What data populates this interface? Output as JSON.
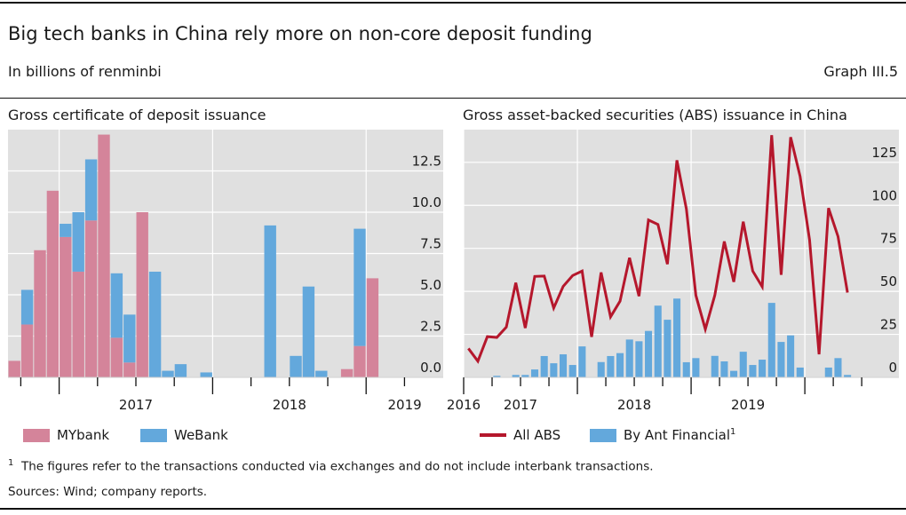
{
  "header": {
    "title": "Big tech banks in China rely more on non-core deposit funding",
    "subtitle": "In billions of renminbi",
    "graph_number": "Graph III.5"
  },
  "colors": {
    "mybank": "#d4849a",
    "webank": "#63a8dc",
    "all_abs": "#b5172c",
    "ant": "#63a8dc",
    "plot_bg": "#e0e0e0",
    "grid": "#ffffff"
  },
  "chart_data": [
    {
      "type": "bar",
      "stacked": true,
      "title": "Gross certificate of deposit issuance",
      "categories": [
        "2016-09",
        "2016-10",
        "2016-11",
        "2016-12",
        "2017-01",
        "2017-02",
        "2017-03",
        "2017-04",
        "2017-05",
        "2017-06",
        "2017-07",
        "2017-08",
        "2017-09",
        "2017-10",
        "2017-11",
        "2017-12",
        "2018-01",
        "2018-02",
        "2018-03",
        "2018-04",
        "2018-05",
        "2018-06",
        "2018-07",
        "2018-08",
        "2018-09",
        "2018-10",
        "2018-11",
        "2018-12",
        "2019-01"
      ],
      "series": [
        {
          "name": "MYbank",
          "values": [
            1.0,
            3.2,
            7.7,
            11.3,
            8.5,
            6.4,
            9.5,
            14.7,
            2.4,
            0.9,
            10.0,
            0,
            0,
            0,
            0,
            0,
            0,
            0,
            0,
            0,
            0,
            0,
            0,
            0,
            0,
            0,
            0.5,
            1.9,
            6.0
          ]
        },
        {
          "name": "WeBank",
          "values": [
            0,
            2.1,
            0,
            0,
            0.8,
            3.6,
            3.7,
            0,
            3.9,
            2.9,
            0,
            6.4,
            0.4,
            0.8,
            0,
            0.3,
            0,
            0,
            0,
            0,
            9.2,
            0,
            1.3,
            5.5,
            0.4,
            0,
            0,
            7.1,
            0
          ]
        }
      ],
      "x_tick_labels": [
        "2017",
        "2018",
        "2019"
      ],
      "y_ticks": [
        "0.0",
        "2.5",
        "5.0",
        "7.5",
        "10.0",
        "12.5"
      ],
      "ylim": [
        0,
        15
      ],
      "y_axis_side": "right",
      "grid": true,
      "legend": "bottom"
    },
    {
      "type": "bar+line",
      "title": "Gross asset-backed securities (ABS) issuance in China",
      "categories": [
        "2016-01",
        "2016-02",
        "2016-03",
        "2016-04",
        "2016-05",
        "2016-06",
        "2016-07",
        "2016-08",
        "2016-09",
        "2016-10",
        "2016-11",
        "2016-12",
        "2017-01",
        "2017-02",
        "2017-03",
        "2017-04",
        "2017-05",
        "2017-06",
        "2017-07",
        "2017-08",
        "2017-09",
        "2017-10",
        "2017-11",
        "2017-12",
        "2018-01",
        "2018-02",
        "2018-03",
        "2018-04",
        "2018-05",
        "2018-06",
        "2018-07",
        "2018-08",
        "2018-09",
        "2018-10",
        "2018-11",
        "2018-12",
        "2019-01",
        "2019-02",
        "2019-03",
        "2019-04",
        "2019-05"
      ],
      "series": [
        {
          "name": "All ABS",
          "type": "line",
          "values": [
            16.8,
            9.4,
            23.7,
            23.2,
            29.2,
            55,
            28.7,
            58.7,
            58.9,
            40.3,
            52.9,
            59.2,
            61.8,
            23.5,
            61,
            35.2,
            44.3,
            69.5,
            47.2,
            91.5,
            88.9,
            65.8,
            126.2,
            97.9,
            47.7,
            28,
            47.7,
            79,
            55.5,
            90.5,
            61.8,
            52.7,
            140.8,
            59.6,
            139.6,
            116.8,
            79.8,
            13.4,
            98.4,
            81.9,
            49.3
          ]
        },
        {
          "name": "By Ant Financial",
          "footnote_marker": "1",
          "type": "bar",
          "values": [
            0,
            0,
            0,
            0.9,
            0,
            1.4,
            1.4,
            4.6,
            12.4,
            8.2,
            13.4,
            7.2,
            18,
            0,
            8.9,
            12.4,
            14.1,
            22,
            21,
            27,
            41.7,
            33.5,
            45.8,
            8.8,
            11.2,
            0,
            12.5,
            9.3,
            3.8,
            14.9,
            7.2,
            10.3,
            43.3,
            20.6,
            24.4,
            5.7,
            0,
            0,
            5.7,
            11.2,
            1.4
          ]
        }
      ],
      "x_tick_labels": [
        "2016",
        "2017",
        "2018",
        "2019"
      ],
      "y_ticks": [
        "0",
        "25",
        "50",
        "75",
        "100",
        "125"
      ],
      "ylim": [
        0,
        144
      ],
      "y_axis_side": "right",
      "grid": true,
      "legend": "bottom"
    }
  ],
  "footnote": {
    "marker": "1",
    "text": "The figures refer to the transactions conducted via exchanges and do not include interbank transactions."
  },
  "sources": "Sources: Wind; company reports."
}
